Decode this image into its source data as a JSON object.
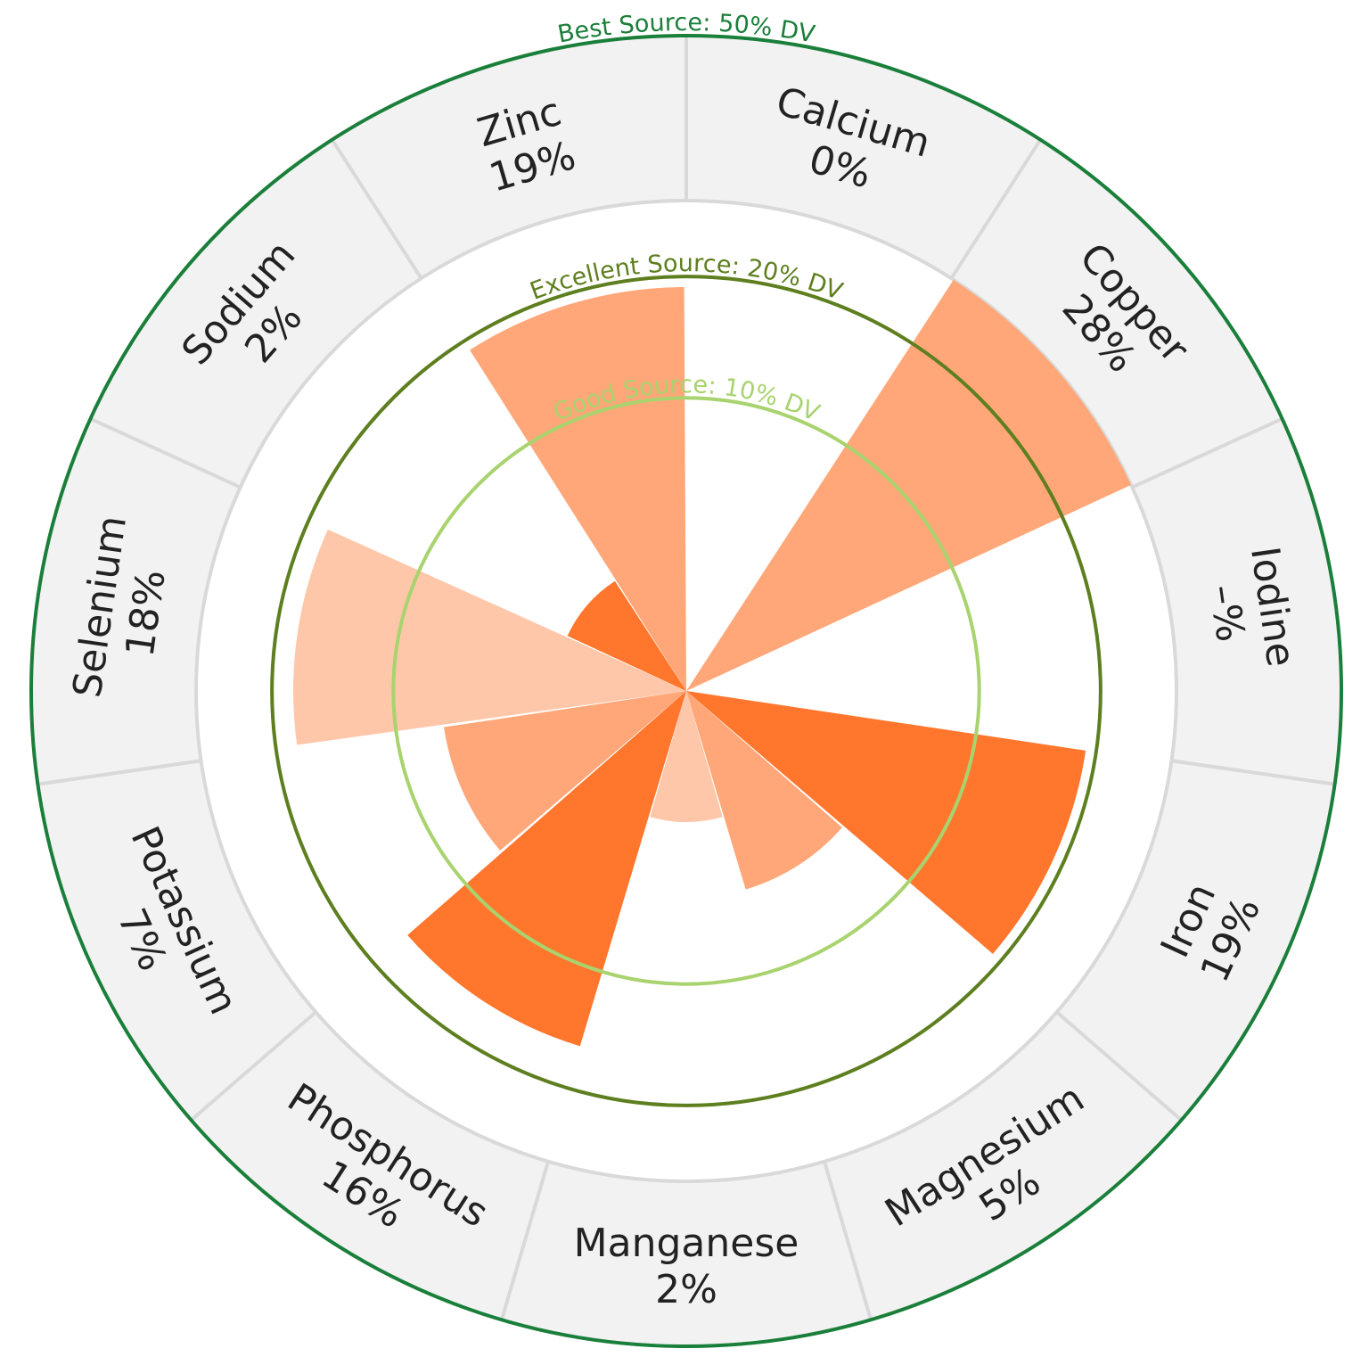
{
  "chart_data": {
    "type": "polar-bar",
    "scale": "sqrt",
    "max_value": 50,
    "categories": [
      {
        "name": "Calcium",
        "label": "0%",
        "value": 0,
        "color": "#ffa778"
      },
      {
        "name": "Copper",
        "label": "28%",
        "value": 28,
        "color": "#ffa778"
      },
      {
        "name": "Iodine",
        "label": "–%",
        "value": null,
        "color": "#ffa778"
      },
      {
        "name": "Iron",
        "label": "19%",
        "value": 19,
        "color": "#ff762c"
      },
      {
        "name": "Magnesium",
        "label": "5%",
        "value": 5,
        "color": "#ffa778"
      },
      {
        "name": "Manganese",
        "label": "2%",
        "value": 2,
        "color": "#ffc7a9"
      },
      {
        "name": "Phosphorus",
        "label": "16%",
        "value": 16,
        "color": "#ff762c"
      },
      {
        "name": "Potassium",
        "label": "7%",
        "value": 7,
        "color": "#ffa778"
      },
      {
        "name": "Selenium",
        "label": "18%",
        "value": 18,
        "color": "#ffc7a9"
      },
      {
        "name": "Sodium",
        "label": "2%",
        "value": 2,
        "color": "#ff762c"
      },
      {
        "name": "Zinc",
        "label": "19%",
        "value": 19,
        "color": "#ffa778"
      }
    ],
    "reference_rings": [
      {
        "label": "Good Source: 10% DV",
        "value": 10,
        "color": "#a8d36e"
      },
      {
        "label": "Excellent Source: 20% DV",
        "value": 20,
        "color": "#5e7f1f"
      },
      {
        "label": "Best Source: 50% DV",
        "value": 50,
        "color": "#1a7f3a"
      }
    ],
    "colors": {
      "outer_band": "#f2f2f2",
      "divider": "#d9d9d9"
    }
  }
}
